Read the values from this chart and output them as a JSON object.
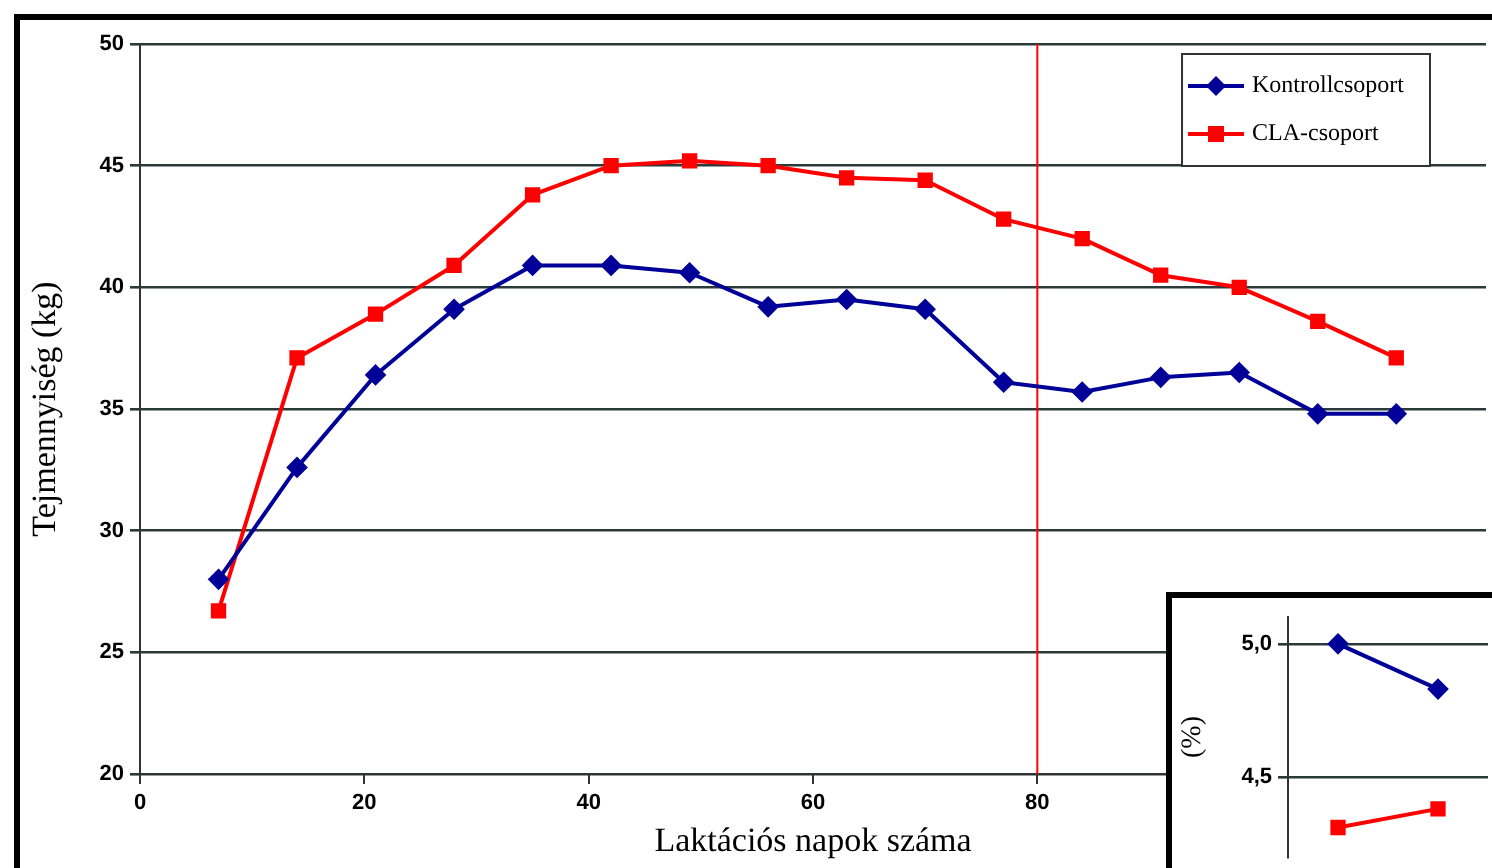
{
  "chart_data": [
    {
      "type": "line",
      "xlabel": "Laktációs napok száma",
      "ylabel": "Tejmennyiség (kg)",
      "x": [
        7,
        14,
        21,
        28,
        35,
        42,
        49,
        56,
        63,
        70,
        77,
        84,
        91,
        98,
        105,
        112
      ],
      "series": [
        {
          "name": "Kontrollcsoport",
          "color": "#000099",
          "marker": "diamond",
          "values": [
            28.0,
            32.6,
            36.4,
            39.1,
            40.9,
            40.9,
            40.6,
            39.2,
            39.5,
            39.1,
            36.1,
            35.7,
            36.3,
            36.5,
            34.8,
            34.8
          ]
        },
        {
          "name": "CLA-csoport",
          "color": "#ff0000",
          "marker": "square",
          "values": [
            26.7,
            37.1,
            38.9,
            40.9,
            43.8,
            45.0,
            45.2,
            45.0,
            44.5,
            44.4,
            42.8,
            42.0,
            40.5,
            40.0,
            38.6,
            37.1
          ]
        }
      ],
      "xlim": [
        0,
        120
      ],
      "xticks": [
        0,
        20,
        40,
        60,
        80
      ],
      "ylim": [
        20,
        50
      ],
      "yticks": [
        20,
        25,
        30,
        35,
        40,
        45,
        50
      ],
      "ref_lines": [
        {
          "axis": "x",
          "value": 80,
          "color": "#ff0000"
        }
      ],
      "grid": "y",
      "legend": "top right"
    },
    {
      "type": "line",
      "ylabel": "(%)",
      "categories": [
        null,
        null
      ],
      "series": [
        {
          "color": "#000099",
          "marker": "diamond",
          "values": [
            5.0,
            4.83
          ]
        },
        {
          "color": "#ff0000",
          "marker": "square",
          "values": [
            4.31,
            4.38
          ]
        }
      ],
      "ylim": [
        4.2,
        5.1
      ],
      "yticks": [
        {
          "value": 4.5,
          "label": "4,5"
        },
        {
          "value": 5.0,
          "label": "5,0"
        }
      ],
      "grid": "y",
      "tick_labels": "y"
    }
  ]
}
